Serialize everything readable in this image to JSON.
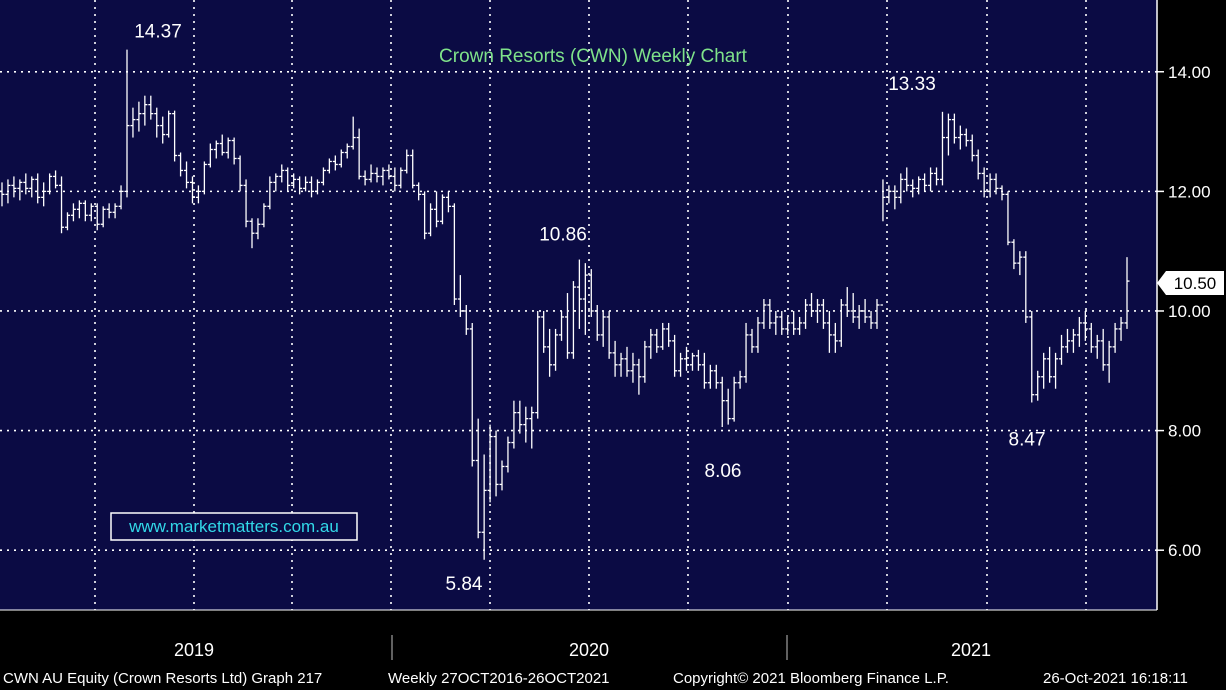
{
  "chart_data": {
    "type": "ohlc",
    "title": "Crown Resorts (CWN) Weekly Chart",
    "y_axis": {
      "ticks": [
        "6.00",
        "8.00",
        "10.00",
        "12.00",
        "14.00"
      ],
      "range": [
        5.0,
        15.2
      ],
      "side": "right"
    },
    "x_axis": {
      "ticks": [
        "2019",
        "2020",
        "2021"
      ]
    },
    "last_price_label": "10.50",
    "annotations": [
      {
        "text": "14.37",
        "value": 14.37
      },
      {
        "text": "10.86",
        "value": 10.86
      },
      {
        "text": "5.84",
        "value": 5.84
      },
      {
        "text": "8.06",
        "value": 8.06
      },
      {
        "text": "13.33",
        "value": 13.33
      },
      {
        "text": "8.47",
        "value": 8.47
      }
    ],
    "grid": true,
    "series": [
      {
        "values": [
          [
            12.0,
            12.15,
            11.75,
            11.95
          ],
          [
            11.95,
            12.2,
            11.8,
            12.1
          ],
          [
            12.1,
            12.25,
            11.9,
            12.05
          ],
          [
            12.05,
            12.2,
            11.85,
            12.15
          ],
          [
            12.15,
            12.3,
            11.95,
            12.05
          ],
          [
            12.05,
            12.25,
            11.9,
            12.2
          ],
          [
            12.2,
            12.3,
            11.8,
            11.9
          ],
          [
            11.9,
            12.15,
            11.75,
            12.0
          ],
          [
            12.0,
            12.3,
            11.95,
            12.25
          ],
          [
            12.25,
            12.35,
            12.05,
            12.1
          ],
          [
            12.1,
            12.25,
            11.3,
            11.4
          ],
          [
            11.4,
            11.65,
            11.35,
            11.6
          ],
          [
            11.6,
            11.8,
            11.5,
            11.7
          ],
          [
            11.7,
            11.85,
            11.55,
            11.8
          ],
          [
            11.8,
            11.85,
            11.5,
            11.6
          ],
          [
            11.6,
            11.8,
            11.5,
            11.75
          ],
          [
            11.75,
            11.8,
            11.35,
            11.45
          ],
          [
            11.45,
            11.75,
            11.4,
            11.7
          ],
          [
            11.7,
            11.8,
            11.55,
            11.65
          ],
          [
            11.65,
            11.8,
            11.55,
            11.75
          ],
          [
            11.75,
            12.1,
            11.7,
            12.0
          ],
          [
            12.0,
            14.37,
            11.9,
            13.1
          ],
          [
            13.1,
            13.4,
            12.9,
            13.2
          ],
          [
            13.2,
            13.5,
            13.0,
            13.3
          ],
          [
            13.3,
            13.6,
            13.1,
            13.45
          ],
          [
            13.45,
            13.6,
            13.2,
            13.3
          ],
          [
            13.3,
            13.4,
            12.9,
            13.1
          ],
          [
            13.1,
            13.25,
            12.8,
            12.95
          ],
          [
            12.95,
            13.35,
            12.9,
            13.3
          ],
          [
            13.3,
            13.35,
            12.5,
            12.6
          ],
          [
            12.6,
            12.65,
            12.25,
            12.35
          ],
          [
            12.35,
            12.5,
            12.05,
            12.15
          ],
          [
            12.15,
            12.25,
            11.8,
            11.9
          ],
          [
            11.9,
            12.1,
            11.8,
            12.0
          ],
          [
            12.0,
            12.5,
            11.95,
            12.45
          ],
          [
            12.45,
            12.8,
            12.4,
            12.7
          ],
          [
            12.7,
            12.85,
            12.55,
            12.8
          ],
          [
            12.8,
            12.95,
            12.6,
            12.65
          ],
          [
            12.65,
            12.9,
            12.55,
            12.85
          ],
          [
            12.85,
            12.9,
            12.45,
            12.55
          ],
          [
            12.55,
            12.6,
            12.0,
            12.1
          ],
          [
            12.1,
            12.2,
            11.4,
            11.5
          ],
          [
            11.5,
            11.55,
            11.05,
            11.3
          ],
          [
            11.3,
            11.55,
            11.2,
            11.45
          ],
          [
            11.45,
            11.8,
            11.4,
            11.75
          ],
          [
            11.75,
            12.25,
            11.7,
            12.15
          ],
          [
            12.15,
            12.3,
            12.0,
            12.25
          ],
          [
            12.25,
            12.45,
            12.15,
            12.35
          ],
          [
            12.35,
            12.4,
            12.0,
            12.1
          ],
          [
            12.1,
            12.3,
            12.05,
            12.2
          ],
          [
            12.2,
            12.25,
            11.95,
            12.05
          ],
          [
            12.05,
            12.25,
            12.0,
            12.15
          ],
          [
            12.15,
            12.25,
            11.9,
            12.0
          ],
          [
            12.0,
            12.2,
            11.95,
            12.15
          ],
          [
            12.15,
            12.4,
            12.1,
            12.35
          ],
          [
            12.35,
            12.55,
            12.3,
            12.5
          ],
          [
            12.5,
            12.6,
            12.35,
            12.45
          ],
          [
            12.45,
            12.7,
            12.4,
            12.65
          ],
          [
            12.65,
            12.8,
            12.55,
            12.75
          ],
          [
            12.75,
            13.25,
            12.7,
            12.9
          ],
          [
            12.9,
            13.05,
            12.2,
            12.25
          ],
          [
            12.25,
            12.35,
            12.1,
            12.2
          ],
          [
            12.2,
            12.45,
            12.15,
            12.3
          ],
          [
            12.3,
            12.4,
            12.15,
            12.25
          ],
          [
            12.25,
            12.4,
            12.1,
            12.35
          ],
          [
            12.35,
            12.45,
            12.2,
            12.25
          ],
          [
            12.25,
            12.4,
            12.0,
            12.1
          ],
          [
            12.1,
            12.4,
            12.05,
            12.35
          ],
          [
            12.35,
            12.7,
            12.3,
            12.6
          ],
          [
            12.6,
            12.7,
            12.05,
            12.1
          ],
          [
            12.1,
            12.15,
            11.85,
            11.95
          ],
          [
            11.95,
            12.0,
            11.2,
            11.3
          ],
          [
            11.3,
            11.8,
            11.25,
            11.7
          ],
          [
            11.7,
            12.0,
            11.4,
            11.5
          ],
          [
            11.5,
            11.95,
            11.45,
            11.9
          ],
          [
            11.9,
            12.0,
            11.65,
            11.75
          ],
          [
            11.75,
            11.8,
            10.1,
            10.2
          ],
          [
            10.2,
            10.6,
            9.9,
            10.0
          ],
          [
            10.0,
            10.1,
            9.6,
            9.7
          ],
          [
            9.7,
            9.8,
            7.4,
            7.5
          ],
          [
            7.5,
            8.2,
            6.2,
            6.3
          ],
          [
            6.3,
            7.6,
            5.84,
            7.0
          ],
          [
            7.0,
            8.1,
            6.8,
            7.9
          ],
          [
            7.9,
            8.0,
            6.9,
            7.1
          ],
          [
            7.1,
            7.5,
            7.0,
            7.4
          ],
          [
            7.4,
            7.9,
            7.3,
            7.8
          ],
          [
            7.8,
            8.5,
            7.7,
            8.3
          ],
          [
            8.3,
            8.5,
            7.95,
            8.1
          ],
          [
            8.1,
            8.4,
            7.8,
            8.2
          ],
          [
            8.2,
            8.4,
            7.7,
            8.3
          ],
          [
            8.3,
            10.0,
            8.2,
            9.9
          ],
          [
            9.9,
            10.0,
            9.3,
            9.4
          ],
          [
            9.4,
            9.7,
            8.9,
            9.1
          ],
          [
            9.1,
            9.7,
            9.0,
            9.6
          ],
          [
            9.6,
            10.0,
            9.5,
            9.9
          ],
          [
            9.9,
            10.3,
            9.2,
            9.3
          ],
          [
            9.3,
            10.5,
            9.2,
            10.4
          ],
          [
            10.4,
            10.86,
            9.7,
            10.2
          ],
          [
            10.2,
            10.8,
            9.6,
            10.6
          ],
          [
            10.6,
            10.7,
            9.9,
            10.0
          ],
          [
            10.0,
            10.1,
            9.5,
            9.6
          ],
          [
            9.6,
            10.0,
            9.4,
            9.9
          ],
          [
            9.9,
            10.0,
            9.2,
            9.3
          ],
          [
            9.3,
            9.5,
            8.9,
            9.1
          ],
          [
            9.1,
            9.3,
            8.9,
            9.2
          ],
          [
            9.2,
            9.4,
            8.9,
            9.0
          ],
          [
            9.0,
            9.3,
            8.8,
            9.1
          ],
          [
            9.1,
            9.2,
            8.6,
            8.9
          ],
          [
            8.9,
            9.5,
            8.8,
            9.4
          ],
          [
            9.4,
            9.7,
            9.2,
            9.6
          ],
          [
            9.6,
            9.7,
            9.3,
            9.4
          ],
          [
            9.4,
            9.8,
            9.35,
            9.7
          ],
          [
            9.7,
            9.8,
            9.4,
            9.5
          ],
          [
            9.5,
            9.6,
            8.9,
            9.0
          ],
          [
            9.0,
            9.3,
            8.9,
            9.2
          ],
          [
            9.2,
            9.4,
            9.0,
            9.1
          ],
          [
            9.1,
            9.3,
            9.0,
            9.25
          ],
          [
            9.25,
            9.35,
            9.0,
            9.1
          ],
          [
            9.1,
            9.3,
            8.7,
            8.8
          ],
          [
            8.8,
            9.1,
            8.7,
            9.0
          ],
          [
            9.0,
            9.1,
            8.7,
            8.8
          ],
          [
            8.8,
            8.9,
            8.06,
            8.5
          ],
          [
            8.5,
            8.7,
            8.1,
            8.2
          ],
          [
            8.2,
            8.9,
            8.15,
            8.8
          ],
          [
            8.8,
            9.0,
            8.7,
            8.9
          ],
          [
            8.9,
            9.8,
            8.8,
            9.6
          ],
          [
            9.6,
            9.7,
            9.3,
            9.4
          ],
          [
            9.4,
            9.9,
            9.3,
            9.8
          ],
          [
            9.8,
            10.2,
            9.7,
            10.1
          ],
          [
            10.1,
            10.2,
            9.7,
            9.8
          ],
          [
            9.8,
            10.0,
            9.6,
            9.9
          ],
          [
            9.9,
            10.0,
            9.6,
            9.7
          ],
          [
            9.7,
            9.9,
            9.6,
            9.8
          ],
          [
            9.8,
            10.0,
            9.6,
            9.7
          ],
          [
            9.7,
            9.9,
            9.6,
            9.8
          ],
          [
            9.8,
            10.2,
            9.7,
            10.1
          ],
          [
            10.1,
            10.3,
            9.9,
            10.0
          ],
          [
            10.0,
            10.2,
            9.8,
            10.1
          ],
          [
            10.1,
            10.2,
            9.7,
            9.8
          ],
          [
            9.8,
            10.0,
            9.3,
            9.6
          ],
          [
            9.6,
            9.8,
            9.3,
            9.5
          ],
          [
            9.5,
            10.2,
            9.4,
            10.1
          ],
          [
            10.1,
            10.4,
            9.9,
            10.0
          ],
          [
            10.0,
            10.3,
            9.8,
            9.9
          ],
          [
            9.9,
            10.1,
            9.7,
            10.0
          ],
          [
            10.0,
            10.2,
            9.8,
            9.9
          ],
          [
            9.9,
            10.0,
            9.7,
            9.8
          ],
          [
            9.8,
            10.2,
            9.7,
            10.1
          ],
          [
            10.1,
            12.2,
            11.5,
            11.9
          ],
          [
            11.9,
            12.1,
            11.8,
            12.0
          ],
          [
            12.0,
            12.1,
            11.7,
            11.9
          ],
          [
            11.9,
            12.3,
            11.8,
            12.2
          ],
          [
            12.2,
            12.4,
            12.0,
            12.1
          ],
          [
            12.1,
            12.2,
            11.9,
            12.05
          ],
          [
            12.05,
            12.25,
            11.95,
            12.2
          ],
          [
            12.2,
            12.3,
            12.0,
            12.1
          ],
          [
            12.1,
            12.4,
            12.0,
            12.3
          ],
          [
            12.3,
            12.4,
            12.1,
            12.2
          ],
          [
            12.2,
            13.33,
            12.1,
            12.9
          ],
          [
            12.9,
            13.3,
            12.6,
            13.2
          ],
          [
            13.2,
            13.3,
            12.8,
            12.9
          ],
          [
            12.9,
            13.1,
            12.7,
            12.95
          ],
          [
            12.95,
            13.05,
            12.75,
            12.85
          ],
          [
            12.85,
            12.95,
            12.5,
            12.6
          ],
          [
            12.6,
            12.7,
            12.2,
            12.3
          ],
          [
            12.3,
            12.4,
            11.9,
            12.0
          ],
          [
            12.0,
            12.3,
            11.9,
            12.2
          ],
          [
            12.2,
            12.3,
            11.95,
            12.05
          ],
          [
            12.05,
            12.1,
            11.85,
            11.95
          ],
          [
            11.95,
            12.0,
            11.1,
            11.15
          ],
          [
            11.15,
            11.2,
            10.7,
            10.8
          ],
          [
            10.8,
            11.0,
            10.6,
            10.9
          ],
          [
            10.9,
            11.0,
            9.8,
            9.9
          ],
          [
            9.9,
            10.0,
            8.47,
            8.6
          ],
          [
            8.6,
            9.0,
            8.5,
            8.9
          ],
          [
            8.9,
            9.3,
            8.7,
            9.2
          ],
          [
            9.2,
            9.4,
            8.8,
            8.9
          ],
          [
            8.9,
            9.3,
            8.7,
            9.2
          ],
          [
            9.2,
            9.6,
            9.1,
            9.4
          ],
          [
            9.4,
            9.7,
            9.3,
            9.5
          ],
          [
            9.5,
            9.7,
            9.3,
            9.6
          ],
          [
            9.6,
            9.9,
            9.4,
            9.8
          ],
          [
            9.8,
            10.0,
            9.5,
            9.7
          ],
          [
            9.7,
            9.8,
            9.3,
            9.4
          ],
          [
            9.4,
            9.6,
            9.2,
            9.5
          ],
          [
            9.5,
            9.7,
            9.0,
            9.1
          ],
          [
            9.1,
            9.5,
            8.8,
            9.4
          ],
          [
            9.4,
            9.8,
            9.3,
            9.7
          ],
          [
            9.7,
            9.9,
            9.5,
            9.8
          ],
          [
            9.8,
            10.9,
            9.7,
            10.5
          ]
        ]
      }
    ]
  },
  "watermark": {
    "text": "www.marketmatters.com.au"
  },
  "footer": {
    "security": "CWN AU Equity (Crown Resorts Ltd) Graph 217",
    "period": "Weekly 27OCT2016-26OCT2021",
    "copyright": "Copyright© 2021 Bloomberg Finance L.P.",
    "timestamp": "26-Oct-2021 16:18:11"
  },
  "colors": {
    "plot_bg": "#0b0b44",
    "price": "#ffffff",
    "grid": "#ffffff",
    "title": "#7fe28a",
    "watermark": "#32d8e8",
    "frame": "#000000"
  }
}
